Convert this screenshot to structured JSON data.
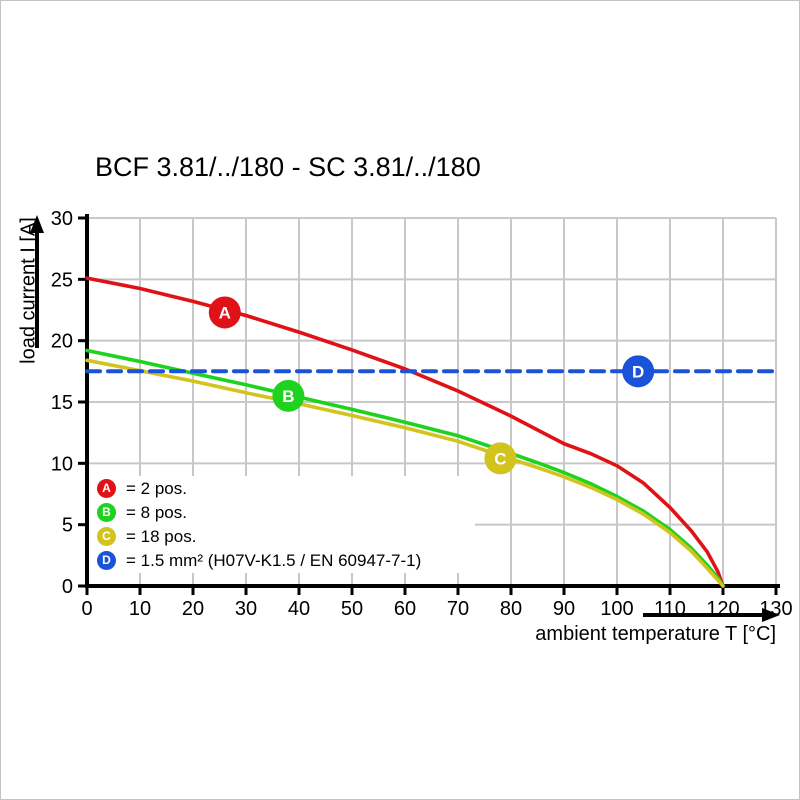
{
  "title": "BCF 3.81/../180 - SC 3.81/../180",
  "y_axis": {
    "label": "load current I [A]"
  },
  "x_axis": {
    "label": "ambient temperature T [°C]"
  },
  "legend": {
    "items": [
      {
        "key": "A",
        "label": "= 2 pos.",
        "color": "#e01117"
      },
      {
        "key": "B",
        "label": "= 8 pos.",
        "color": "#1dd31d"
      },
      {
        "key": "C",
        "label": "= 18 pos.",
        "color": "#d2c31e"
      },
      {
        "key": "D",
        "label": "= 1.5 mm² (H07V-K1.5 / EN 60947-7-1)",
        "color": "#1a53d8"
      }
    ]
  },
  "chart_data": {
    "type": "line",
    "title": "BCF 3.81/../180 - SC 3.81/../180",
    "xlabel": "ambient temperature T [°C]",
    "ylabel": "load current I [A]",
    "xlim": [
      0,
      130
    ],
    "ylim": [
      0,
      30
    ],
    "x_ticks": [
      0,
      10,
      20,
      30,
      40,
      50,
      60,
      70,
      80,
      90,
      100,
      110,
      120,
      130
    ],
    "y_ticks": [
      0,
      5,
      10,
      15,
      20,
      25,
      30
    ],
    "grid": true,
    "legend_position": "lower-left-inside",
    "series": [
      {
        "name": "A",
        "label": "2 pos.",
        "color": "#e01117",
        "style": "solid",
        "marker_at": [
          26,
          22.3
        ],
        "points": [
          [
            0,
            25.1
          ],
          [
            10,
            24.25
          ],
          [
            20,
            23.2
          ],
          [
            30,
            22.05
          ],
          [
            40,
            20.7
          ],
          [
            50,
            19.25
          ],
          [
            60,
            17.7
          ],
          [
            70,
            15.9
          ],
          [
            80,
            13.85
          ],
          [
            90,
            11.6
          ],
          [
            95,
            10.8
          ],
          [
            100,
            9.8
          ],
          [
            105,
            8.4
          ],
          [
            110,
            6.4
          ],
          [
            114,
            4.5
          ],
          [
            117,
            2.8
          ],
          [
            119,
            1.2
          ],
          [
            120,
            0
          ]
        ]
      },
      {
        "name": "B",
        "label": "8 pos.",
        "color": "#1dd31d",
        "style": "solid",
        "marker_at": [
          38,
          15.5
        ],
        "points": [
          [
            0,
            19.2
          ],
          [
            10,
            18.3
          ],
          [
            20,
            17.35
          ],
          [
            30,
            16.4
          ],
          [
            40,
            15.4
          ],
          [
            50,
            14.4
          ],
          [
            60,
            13.35
          ],
          [
            70,
            12.25
          ],
          [
            80,
            10.8
          ],
          [
            85,
            10.05
          ],
          [
            90,
            9.25
          ],
          [
            95,
            8.35
          ],
          [
            100,
            7.3
          ],
          [
            105,
            6.1
          ],
          [
            110,
            4.6
          ],
          [
            114,
            3.1
          ],
          [
            117,
            1.7
          ],
          [
            119,
            0.7
          ],
          [
            120,
            0
          ]
        ]
      },
      {
        "name": "C",
        "label": "18 pos.",
        "color": "#d2c31e",
        "style": "solid",
        "marker_at": [
          78,
          10.4
        ],
        "points": [
          [
            0,
            18.4
          ],
          [
            10,
            17.55
          ],
          [
            20,
            16.7
          ],
          [
            30,
            15.75
          ],
          [
            40,
            14.85
          ],
          [
            50,
            13.9
          ],
          [
            60,
            12.9
          ],
          [
            70,
            11.8
          ],
          [
            80,
            10.35
          ],
          [
            85,
            9.65
          ],
          [
            90,
            8.9
          ],
          [
            95,
            8.05
          ],
          [
            100,
            7.05
          ],
          [
            105,
            5.85
          ],
          [
            110,
            4.35
          ],
          [
            114,
            2.85
          ],
          [
            117,
            1.45
          ],
          [
            119,
            0.5
          ],
          [
            120,
            0
          ]
        ]
      },
      {
        "name": "D",
        "label": "1.5 mm² (H07V-K1.5 / EN 60947-7-1)",
        "color": "#1a53d8",
        "style": "dashed",
        "marker_at": [
          104,
          17.5
        ],
        "points": [
          [
            0,
            17.5
          ],
          [
            130,
            17.5
          ]
        ]
      }
    ]
  }
}
